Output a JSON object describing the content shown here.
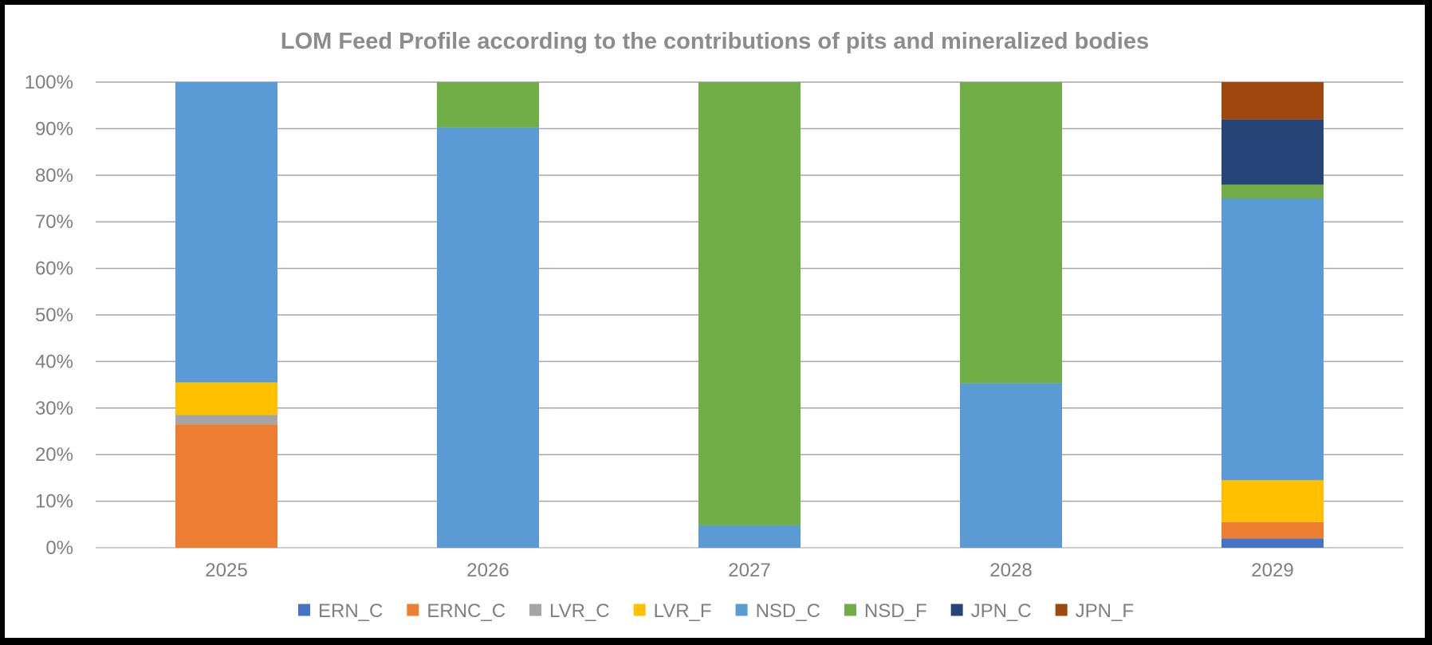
{
  "chart_data": {
    "type": "bar",
    "stacked": "percent",
    "title": "LOM Feed Profile according to the contributions of pits and mineralized bodies",
    "categories": [
      "2025",
      "2026",
      "2027",
      "2028",
      "2029"
    ],
    "ylim": [
      0,
      100
    ],
    "yticks": [
      "0%",
      "10%",
      "20%",
      "30%",
      "40%",
      "50%",
      "60%",
      "70%",
      "80%",
      "90%",
      "100%"
    ],
    "grid": true,
    "legend_position": "bottom",
    "series": [
      {
        "name": "ERN_C",
        "color": "#4472c4",
        "values": [
          0,
          0,
          0,
          0,
          2
        ]
      },
      {
        "name": "ERNC_C",
        "color": "#ed7d31",
        "values": [
          26.5,
          0,
          0,
          0,
          3.5
        ]
      },
      {
        "name": "LVR_C",
        "color": "#a5a5a5",
        "values": [
          2,
          0,
          0,
          0,
          0
        ]
      },
      {
        "name": "LVR_F",
        "color": "#ffc000",
        "values": [
          7,
          0,
          0,
          0,
          9
        ]
      },
      {
        "name": "NSD_C",
        "color": "#5b9bd5",
        "values": [
          64.5,
          90.3,
          4.8,
          35.3,
          60.5
        ]
      },
      {
        "name": "NSD_F",
        "color": "#70ad47",
        "values": [
          0,
          9.7,
          95.2,
          64.7,
          3
        ]
      },
      {
        "name": "JPN_C",
        "color": "#264478",
        "values": [
          0,
          0,
          0,
          0,
          14
        ]
      },
      {
        "name": "JPN_F",
        "color": "#9e480e",
        "values": [
          0,
          0,
          0,
          0,
          8
        ]
      }
    ]
  }
}
